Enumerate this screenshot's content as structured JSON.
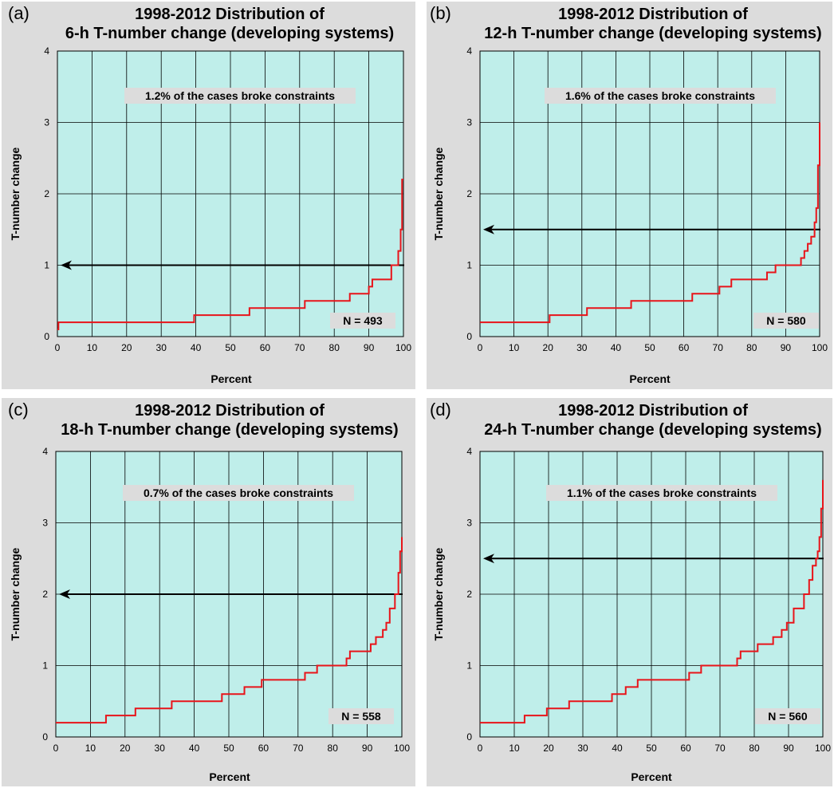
{
  "panels": [
    {
      "label": "(a)",
      "title_line1": "1998-2012 Distribution of",
      "title_line2": "6-h T-number change (developing systems)",
      "annotation": "1.2% of the cases broke constraints",
      "n_label": "N = 493",
      "constraint_value": 1.0
    },
    {
      "label": "(b)",
      "title_line1": "1998-2012 Distribution of",
      "title_line2": "12-h T-number change (developing systems)",
      "annotation": "1.6% of the cases broke constraints",
      "n_label": "N = 580",
      "constraint_value": 1.5
    },
    {
      "label": "(c)",
      "title_line1": "1998-2012 Distribution of",
      "title_line2": "18-h T-number change (developing systems)",
      "annotation": "0.7% of the cases broke constraints",
      "n_label": "N = 558",
      "constraint_value": 2.0
    },
    {
      "label": "(d)",
      "title_line1": "1998-2012 Distribution of",
      "title_line2": "24-h T-number change (developing systems)",
      "annotation": "1.1% of the cases broke constraints",
      "n_label": "N = 560",
      "constraint_value": 2.5
    }
  ],
  "colors": {
    "plot_bg": "#bfeeea",
    "panel_bg": "#dcdcdc",
    "line": "#e8141a",
    "arrow": "#000000",
    "grid": "#000000",
    "label_box": "#dcdcdc"
  },
  "chart_data": [
    {
      "type": "line",
      "title": "1998-2012 Distribution of 6-h T-number change (developing systems)",
      "xlabel": "Percent",
      "ylabel": "T-number change",
      "xlim": [
        0,
        100
      ],
      "ylim": [
        0,
        4
      ],
      "xticks": [
        0,
        10,
        20,
        30,
        40,
        50,
        60,
        70,
        80,
        90,
        100
      ],
      "yticks": [
        0,
        1,
        2,
        3,
        4
      ],
      "grid": true,
      "x": [
        0,
        0.3,
        39.5,
        55.5,
        71.5,
        84.5,
        90,
        91,
        92.5,
        96.5,
        97.5,
        98.5,
        99.2,
        99.6,
        100
      ],
      "y": [
        0.1,
        0.2,
        0.3,
        0.4,
        0.5,
        0.6,
        0.7,
        0.8,
        0.8,
        1.0,
        1.0,
        1.2,
        1.5,
        2.2,
        2.2
      ],
      "constraint": 1.0
    },
    {
      "type": "line",
      "title": "1998-2012 Distribution of 12-h T-number change (developing systems)",
      "xlabel": "Percent",
      "ylabel": "T-number change",
      "xlim": [
        0,
        100
      ],
      "ylim": [
        0,
        4
      ],
      "xticks": [
        0,
        10,
        20,
        30,
        40,
        50,
        60,
        70,
        80,
        90,
        100
      ],
      "yticks": [
        0,
        1,
        2,
        3,
        4
      ],
      "grid": true,
      "x": [
        0,
        20.5,
        31.5,
        44.5,
        62.5,
        70.5,
        74,
        84.5,
        87,
        94.5,
        95.5,
        96.5,
        97.5,
        98.5,
        99,
        99.5,
        100
      ],
      "y": [
        0.2,
        0.3,
        0.4,
        0.5,
        0.6,
        0.7,
        0.8,
        0.9,
        1.0,
        1.1,
        1.2,
        1.3,
        1.4,
        1.6,
        1.8,
        2.4,
        3.0
      ],
      "constraint": 1.5
    },
    {
      "type": "line",
      "title": "1998-2012 Distribution of 18-h T-number change (developing systems)",
      "xlabel": "Percent",
      "ylabel": "T-number change",
      "xlim": [
        0,
        100
      ],
      "ylim": [
        0,
        4
      ],
      "xticks": [
        0,
        10,
        20,
        30,
        40,
        50,
        60,
        70,
        80,
        90,
        100
      ],
      "yticks": [
        0,
        1,
        2,
        3,
        4
      ],
      "grid": true,
      "x": [
        0,
        14.5,
        23,
        33.5,
        48,
        54.5,
        59.5,
        72,
        75.5,
        84,
        85,
        91,
        92.5,
        94.5,
        95.5,
        96.5,
        98,
        99,
        99.5,
        100
      ],
      "y": [
        0.2,
        0.3,
        0.4,
        0.5,
        0.6,
        0.7,
        0.8,
        0.9,
        1.0,
        1.1,
        1.2,
        1.3,
        1.4,
        1.5,
        1.6,
        1.8,
        2.0,
        2.3,
        2.6,
        2.8
      ],
      "constraint": 2.0
    },
    {
      "type": "line",
      "title": "1998-2012 Distribution of 24-h T-number change (developing systems)",
      "xlabel": "Percent",
      "ylabel": "T-number change",
      "xlim": [
        0,
        100
      ],
      "ylim": [
        0,
        4
      ],
      "xticks": [
        0,
        10,
        20,
        30,
        40,
        50,
        60,
        70,
        80,
        90,
        100
      ],
      "yticks": [
        0,
        1,
        2,
        3,
        4
      ],
      "grid": true,
      "x": [
        0,
        13,
        19.5,
        26,
        38.5,
        42.5,
        46,
        61,
        64.5,
        75,
        76,
        81,
        85.5,
        88,
        89.5,
        91.5,
        94.5,
        96,
        97,
        98,
        98.5,
        99,
        99.5,
        100
      ],
      "y": [
        0.2,
        0.3,
        0.4,
        0.5,
        0.6,
        0.7,
        0.8,
        0.9,
        1.0,
        1.1,
        1.2,
        1.3,
        1.4,
        1.5,
        1.6,
        1.8,
        2.0,
        2.2,
        2.4,
        2.5,
        2.6,
        2.8,
        3.2,
        3.6
      ],
      "constraint": 2.5
    }
  ]
}
